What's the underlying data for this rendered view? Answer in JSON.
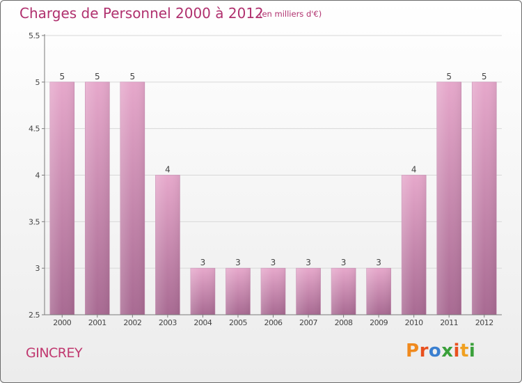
{
  "header": {
    "title": "Charges de Personnel 2000 à 2012",
    "unit": "(en milliers d'€)"
  },
  "footer": {
    "place": "GINCREY",
    "logo": "Proxiti",
    "logo_colors": [
      "#f08a1e",
      "#e8501e",
      "#3a7fd0",
      "#3aa03a",
      "#e8501e",
      "#f0a020",
      "#3aa03a"
    ]
  },
  "colors": {
    "bar_top": "#e6a8cb",
    "bar_bottom": "#a86a92",
    "axis": "#7a7a7a",
    "grid": "#d8d8d8",
    "text": "#444444"
  },
  "chart_data": {
    "type": "bar",
    "title": "Charges de Personnel 2000 à 2012",
    "subtitle": "(en milliers d'€)",
    "xlabel": "",
    "ylabel": "",
    "categories": [
      "2000",
      "2001",
      "2002",
      "2003",
      "2004",
      "2005",
      "2006",
      "2007",
      "2008",
      "2009",
      "2010",
      "2011",
      "2012"
    ],
    "values": [
      5,
      5,
      5,
      4,
      3,
      3,
      3,
      3,
      3,
      3,
      4,
      5,
      5
    ],
    "data_labels": [
      "5",
      "5",
      "5",
      "4",
      "3",
      "3",
      "3",
      "3",
      "3",
      "3",
      "4",
      "5",
      "5"
    ],
    "ylim": [
      2.5,
      5.5
    ],
    "yticks": [
      "2.5",
      "3",
      "3.5",
      "4",
      "4.5",
      "5",
      "5.5"
    ],
    "grid": true,
    "legend": "none"
  }
}
